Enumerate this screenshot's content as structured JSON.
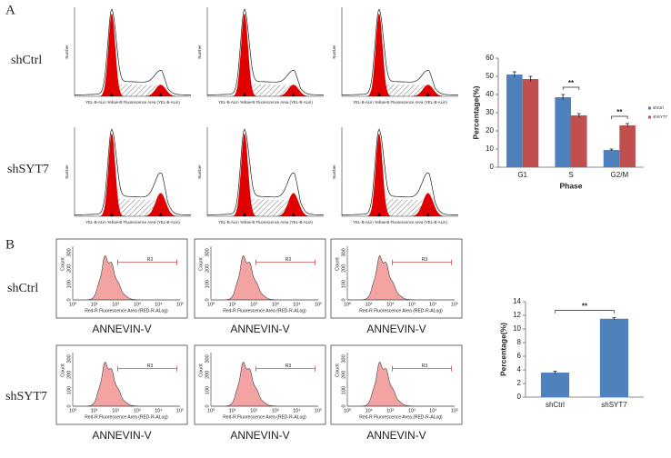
{
  "panel_labels": [
    "A",
    "B"
  ],
  "cell_cycle": {
    "groups": [
      "shCtrl",
      "shSYT7"
    ],
    "x_label": "YEL-B-ALin Yellow-B Fluorescence Area (YEL-B-ALin)",
    "y_label": "Number"
  },
  "apoptosis": {
    "groups": [
      "shCtrl",
      "shSYT7"
    ],
    "x_label": "ANNEVIN-V",
    "axis_label": "Red-R Fluorescence Area (RED-R-ALog)",
    "y_label": "Count",
    "gate": "R3",
    "yticks": [
      0,
      100,
      200,
      300
    ],
    "xticks": [
      "10⁰",
      "10¹",
      "10²",
      "10³",
      "10⁴",
      "10⁵"
    ]
  },
  "chart_data": [
    {
      "type": "bar",
      "categories": [
        "G1",
        "S",
        "G2/M"
      ],
      "series": [
        {
          "name": "shCtrl",
          "color": "#4f81bd",
          "values": [
            51,
            38.5,
            9.5
          ],
          "errors": [
            1.5,
            1.5,
            0.5
          ]
        },
        {
          "name": "shSYT7",
          "color": "#c0504d",
          "values": [
            48.5,
            28.5,
            23
          ],
          "errors": [
            1.5,
            1,
            1
          ]
        }
      ],
      "ylim": [
        0,
        60
      ],
      "yticks": [
        0,
        10,
        20,
        30,
        40,
        50,
        60
      ],
      "y_label": "Percentage(%)",
      "x_label": "Phase",
      "legend": "right",
      "annotations": [
        {
          "text": "**",
          "category": "S"
        },
        {
          "text": "**",
          "category": "G2/M"
        }
      ]
    },
    {
      "type": "bar",
      "categories": [
        "shCtrl",
        "shSYT7"
      ],
      "values": [
        3.6,
        11.5
      ],
      "errors": [
        0.2,
        0.15
      ],
      "color": "#4f81bd",
      "ylim": [
        0,
        14
      ],
      "yticks": [
        0,
        2,
        4,
        6,
        8,
        10,
        12,
        14
      ],
      "y_label": "Percentage(%)",
      "annotations": [
        {
          "text": "**",
          "from": "shCtrl",
          "to": "shSYT7"
        }
      ]
    }
  ]
}
